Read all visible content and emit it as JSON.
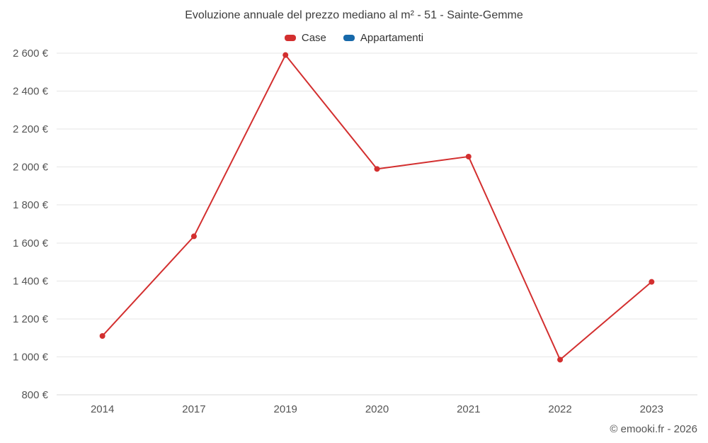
{
  "page": {
    "title": "Evoluzione annuale del prezzo mediano al m² - 51 - Sainte-Gemme",
    "copyright": "© emooki.fr - 2026"
  },
  "legend": {
    "items": [
      {
        "label": "Case",
        "color": "#d32f2f"
      },
      {
        "label": "Appartamenti",
        "color": "#1769aa"
      }
    ]
  },
  "chart_data": {
    "type": "line",
    "title": "Evoluzione annuale del prezzo mediano al m² - 51 - Sainte-Gemme",
    "categories": [
      "2014",
      "2017",
      "2019",
      "2020",
      "2021",
      "2022",
      "2023"
    ],
    "series": [
      {
        "name": "Case",
        "color": "#d32f2f",
        "values": [
          1110,
          1635,
          2590,
          1990,
          2055,
          985,
          1395
        ]
      },
      {
        "name": "Appartamenti",
        "color": "#1769aa",
        "values": []
      }
    ],
    "xlabel": "",
    "ylabel": "",
    "ylim": [
      800,
      2600
    ],
    "ytick_step": 200,
    "ytick_suffix": " €",
    "grid": true,
    "grid_color": "#e6e6e6",
    "axis_line_color": "#d8d8d8",
    "legend_position": "top",
    "marker": "circle"
  }
}
